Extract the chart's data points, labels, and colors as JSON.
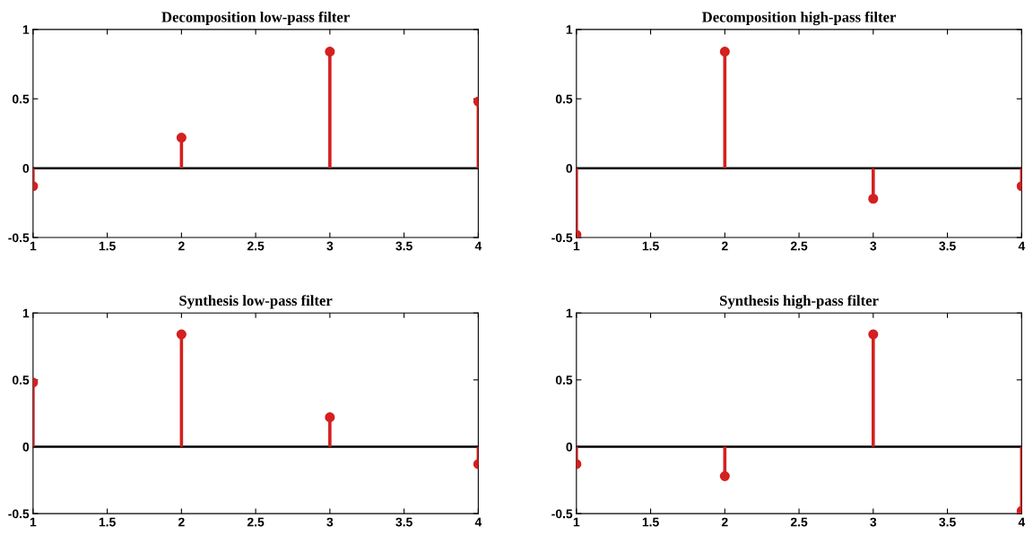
{
  "chart_data": [
    {
      "type": "lollipop",
      "title": "Decomposition low-pass filter",
      "x": [
        1,
        2,
        3,
        4
      ],
      "xlim": [
        1,
        4
      ],
      "xticks": [
        1,
        1.5,
        2,
        2.5,
        3,
        3.5,
        4
      ],
      "ylim": [
        -0.5,
        1
      ],
      "yticks": [
        -0.5,
        0,
        0.5,
        1
      ],
      "marker": "circle",
      "series": [
        {
          "color": "#d42020",
          "values": [
            -0.13,
            0.22,
            0.84,
            0.48
          ]
        }
      ],
      "ref_lines": [
        {
          "axis": "y",
          "value": 0,
          "color": "#000000"
        }
      ]
    },
    {
      "type": "lollipop",
      "title": "Decomposition high-pass filter",
      "x": [
        1,
        2,
        3,
        4
      ],
      "xlim": [
        1,
        4
      ],
      "xticks": [
        1,
        1.5,
        2,
        2.5,
        3,
        3.5,
        4
      ],
      "ylim": [
        -0.5,
        1
      ],
      "yticks": [
        -0.5,
        0,
        0.5,
        1
      ],
      "marker": "circle",
      "series": [
        {
          "color": "#d42020",
          "values": [
            -0.48,
            0.84,
            -0.22,
            -0.13
          ]
        }
      ],
      "ref_lines": [
        {
          "axis": "y",
          "value": 0,
          "color": "#000000"
        }
      ]
    },
    {
      "type": "lollipop",
      "title": "Synthesis low-pass filter",
      "x": [
        1,
        2,
        3,
        4
      ],
      "xlim": [
        1,
        4
      ],
      "xticks": [
        1,
        1.5,
        2,
        2.5,
        3,
        3.5,
        4
      ],
      "ylim": [
        -0.5,
        1
      ],
      "yticks": [
        -0.5,
        0,
        0.5,
        1
      ],
      "marker": "circle",
      "series": [
        {
          "color": "#d42020",
          "values": [
            0.48,
            0.84,
            0.22,
            -0.13
          ]
        }
      ],
      "ref_lines": [
        {
          "axis": "y",
          "value": 0,
          "color": "#000000"
        }
      ]
    },
    {
      "type": "lollipop",
      "title": "Synthesis high-pass filter",
      "x": [
        1,
        2,
        3,
        4
      ],
      "xlim": [
        1,
        4
      ],
      "xticks": [
        1,
        1.5,
        2,
        2.5,
        3,
        3.5,
        4
      ],
      "ylim": [
        -0.5,
        1
      ],
      "yticks": [
        -0.5,
        0,
        0.5,
        1
      ],
      "marker": "circle",
      "series": [
        {
          "color": "#d42020",
          "values": [
            -0.13,
            -0.22,
            0.84,
            -0.48
          ]
        }
      ],
      "ref_lines": [
        {
          "axis": "y",
          "value": 0,
          "color": "#000000"
        }
      ]
    }
  ]
}
